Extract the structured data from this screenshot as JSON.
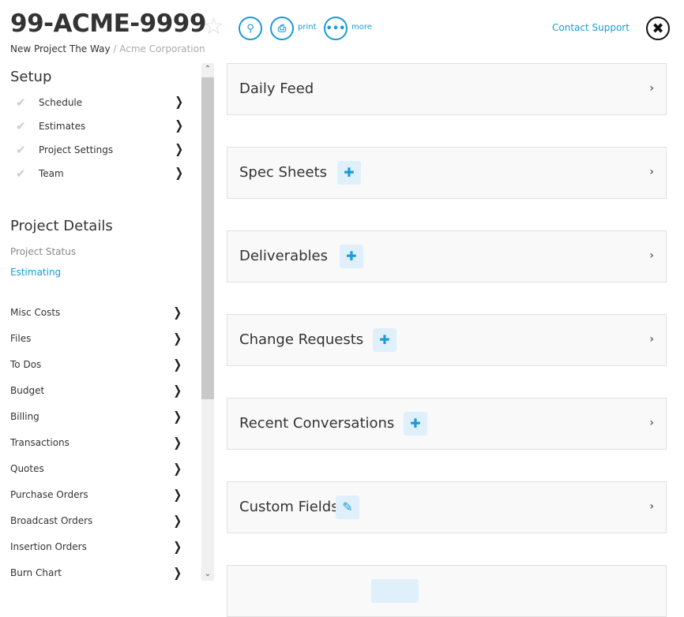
{
  "header": {
    "title": "99-ACME-9999",
    "project_name": "New Project The Way",
    "separator": " / ",
    "company": "Acme Corporation",
    "print_label": "print",
    "more_label": "more",
    "contact_support": "Contact Support",
    "icons": [
      "star-icon",
      "search-icon",
      "print-icon",
      "more-icon",
      "close-icon"
    ]
  },
  "setup": {
    "heading": "Setup",
    "items": [
      {
        "label": "Schedule"
      },
      {
        "label": "Estimates"
      },
      {
        "label": "Project Settings"
      },
      {
        "label": "Team"
      }
    ]
  },
  "details": {
    "heading": "Project Details",
    "status_label": "Project Status",
    "status_value": "Estimating",
    "items": [
      {
        "label": "Misc Costs"
      },
      {
        "label": "Files"
      },
      {
        "label": "To Dos"
      },
      {
        "label": "Budget"
      },
      {
        "label": "Billing"
      },
      {
        "label": "Transactions"
      },
      {
        "label": "Quotes"
      },
      {
        "label": "Purchase Orders"
      },
      {
        "label": "Broadcast Orders"
      },
      {
        "label": "Insertion Orders"
      },
      {
        "label": "Burn Chart"
      }
    ]
  },
  "panels": [
    {
      "title": "Daily Feed",
      "action": ""
    },
    {
      "title": "Spec Sheets",
      "action": "plus-icon"
    },
    {
      "title": "Deliverables",
      "action": "plus-icon"
    },
    {
      "title": "Change Requests",
      "action": "plus-icon"
    },
    {
      "title": "Recent Conversations",
      "action": "plus-icon"
    },
    {
      "title": "Custom Fields",
      "action": "pencil-icon"
    }
  ],
  "colors": {
    "accent": "#1a9ad6",
    "action_bg": "#dff0fb"
  }
}
